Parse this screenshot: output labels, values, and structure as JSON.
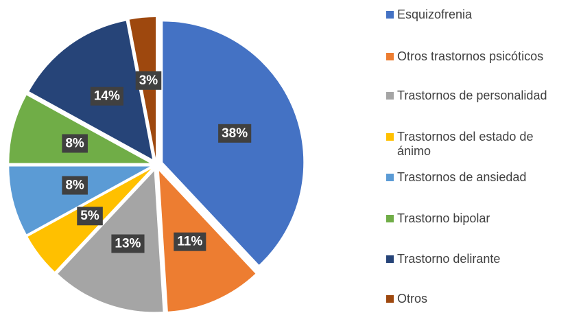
{
  "chart_data": {
    "type": "pie",
    "categories": [
      "Esquizofrenia",
      "Otros trastornos psicóticos",
      "Trastornos de personalidad",
      "Trastornos del estado de ánimo",
      "Trastornos de ansiedad",
      "Trastorno bipolar",
      "Trastorno delirante",
      "Otros"
    ],
    "values": [
      38,
      11,
      13,
      5,
      8,
      8,
      14,
      3
    ],
    "value_labels": [
      "38%",
      "11%",
      "13%",
      "5%",
      "8%",
      "8%",
      "14%",
      "3%"
    ],
    "colors": [
      "#4472c4",
      "#ed7d31",
      "#a5a5a5",
      "#ffc000",
      "#5b9bd5",
      "#70ad47",
      "#264478",
      "#9e480e"
    ],
    "legend": "right"
  }
}
